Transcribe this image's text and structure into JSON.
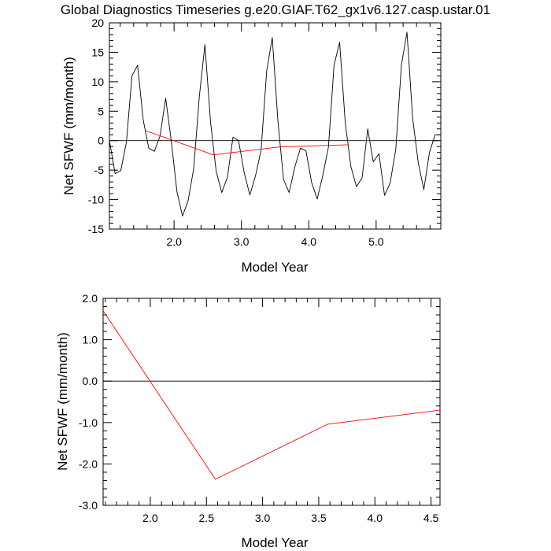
{
  "chart_data": [
    {
      "type": "line",
      "title": "Global Diagnostics Timeseries g.e20.GIAF.T62_gx1v6.127.casp.ustar.01",
      "xlabel": "Model Year",
      "ylabel": "Net SFWF (mm/month)",
      "xlim": [
        1.04,
        5.96
      ],
      "ylim": [
        -15,
        20
      ],
      "x_ticks": [
        2.0,
        3.0,
        4.0,
        5.0
      ],
      "x_tick_labels": [
        "2.0",
        "3.0",
        "4.0",
        "5.0"
      ],
      "y_ticks": [
        -15,
        -10,
        -5,
        0,
        5,
        10,
        15,
        20
      ],
      "y_tick_labels": [
        "-15",
        "-10",
        "-5",
        "0",
        "5",
        "10",
        "15",
        "20"
      ],
      "reference_line": 0,
      "series": [
        {
          "color": "#000000",
          "x": [
            1.04,
            1.125,
            1.208,
            1.292,
            1.375,
            1.458,
            1.542,
            1.625,
            1.708,
            1.792,
            1.875,
            1.958,
            2.042,
            2.125,
            2.208,
            2.292,
            2.375,
            2.458,
            2.542,
            2.625,
            2.708,
            2.792,
            2.875,
            2.958,
            3.042,
            3.125,
            3.208,
            3.292,
            3.375,
            3.458,
            3.542,
            3.625,
            3.708,
            3.792,
            3.875,
            3.958,
            4.042,
            4.125,
            4.208,
            4.292,
            4.375,
            4.458,
            4.542,
            4.625,
            4.708,
            4.792,
            4.875,
            4.958,
            5.042,
            5.125,
            5.208,
            5.292,
            5.375,
            5.458,
            5.542,
            5.625,
            5.708,
            5.792,
            5.875,
            5.96
          ],
          "y": [
            0.0,
            -5.6,
            -5.1,
            -0.3,
            11.0,
            12.8,
            3.5,
            -1.3,
            -1.8,
            0.8,
            7.2,
            0.0,
            -8.6,
            -12.8,
            -10.2,
            -4.7,
            7.5,
            16.3,
            3.1,
            -5.2,
            -8.8,
            -6.2,
            0.6,
            0.0,
            -5.5,
            -9.2,
            -6.0,
            -1.6,
            11.8,
            17.5,
            3.3,
            -6.6,
            -8.8,
            -4.5,
            -1.3,
            -1.7,
            -7.1,
            -9.9,
            -5.9,
            -1.1,
            12.8,
            16.7,
            3.0,
            -4.4,
            -7.8,
            -6.3,
            2.0,
            -3.6,
            -2.2,
            -9.3,
            -7.2,
            -1.4,
            12.8,
            18.4,
            3.8,
            -3.7,
            -8.3,
            -2.0,
            1.0,
            1.0
          ]
        },
        {
          "color": "#ff0000",
          "x": [
            1.58,
            2.58,
            3.58,
            4.58
          ],
          "y": [
            1.7,
            -2.4,
            -1.05,
            -0.7
          ]
        }
      ]
    },
    {
      "type": "line",
      "title": "",
      "xlabel": "Model Year",
      "ylabel": "Net SFWF (mm/month)",
      "xlim": [
        1.58,
        4.58
      ],
      "ylim": [
        -3.0,
        2.0
      ],
      "x_ticks": [
        2.0,
        2.5,
        3.0,
        3.5,
        4.0,
        4.5
      ],
      "x_tick_labels": [
        "2.0",
        "2.5",
        "3.0",
        "3.5",
        "4.0",
        "4.5"
      ],
      "y_ticks": [
        -3.0,
        -2.0,
        -1.0,
        0.0,
        1.0,
        2.0
      ],
      "y_tick_labels": [
        "-3.0",
        "-2.0",
        "-1.0",
        "0.0",
        "1.0",
        "2.0"
      ],
      "reference_line": 0,
      "series": [
        {
          "color": "#ff0000",
          "x": [
            1.58,
            2.58,
            3.58,
            4.58
          ],
          "y": [
            1.7,
            -2.37,
            -1.04,
            -0.7
          ]
        }
      ]
    }
  ]
}
